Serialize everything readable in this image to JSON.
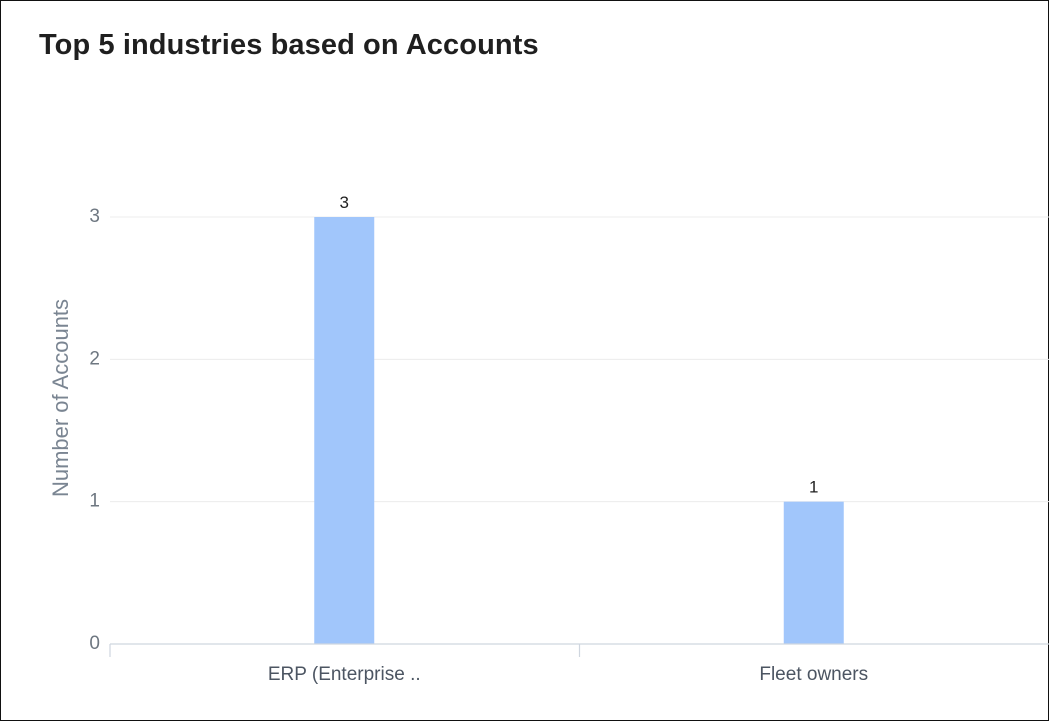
{
  "widget": {
    "title": "Top 5 industries based on Accounts"
  },
  "chart_data": {
    "type": "bar",
    "title": "Top 5 industries based on Accounts",
    "xlabel": "",
    "ylabel": "Number of Accounts",
    "categories": [
      "ERP (Enterprise ..",
      "Fleet owners"
    ],
    "values": [
      3,
      1
    ],
    "data_labels": [
      "3",
      "1"
    ],
    "y_ticks": [
      0,
      1,
      2,
      3
    ],
    "y_tick_labels": [
      "0",
      "1",
      "2",
      "3"
    ],
    "ylim": [
      0,
      3
    ],
    "grid": true,
    "legend": "none",
    "bar_color": "#a1c6fb",
    "grid_color": "#ececec",
    "axis_color": "#cfd6df"
  }
}
